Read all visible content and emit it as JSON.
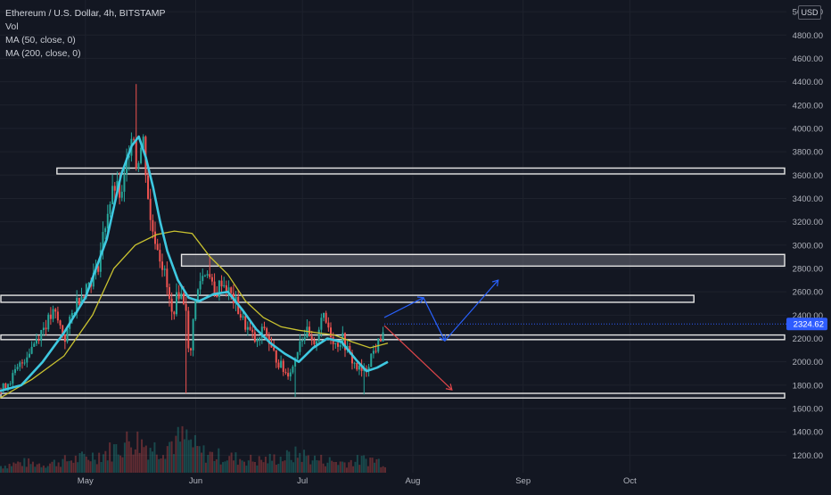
{
  "legend": {
    "title": "Ethereum / U.S. Dollar, 4h, BITSTAMP",
    "indicators": [
      "Vol",
      "MA (50, close, 0)",
      "MA (200, close, 0)"
    ]
  },
  "currency_label": "USD",
  "colors": {
    "background": "#131722",
    "grid": "#1e222d",
    "candle_up": "#26a69a",
    "candle_down": "#ef5350",
    "ma50": "#3ec8e0",
    "ma200": "#c9c230",
    "zone_border": "#e6e6e6",
    "zone_fill": "#6b6e78",
    "bull_arrow": "#2962ff",
    "bear_arrow": "#e0464a",
    "last_price_bg": "#2e5cff"
  },
  "chart_data": {
    "type": "candlestick",
    "symbol": "Ethereum / U.S. Dollar",
    "interval": "4h",
    "exchange": "BITSTAMP",
    "ylim": [
      1050,
      5100
    ],
    "y_ticks": [
      "1200.00",
      "1400.00",
      "1600.00",
      "1800.00",
      "2000.00",
      "2200.00",
      "2400.00",
      "2600.00",
      "2800.00",
      "3000.00",
      "3200.00",
      "3400.00",
      "3600.00",
      "3800.00",
      "4000.00",
      "4200.00",
      "4400.00",
      "4600.00",
      "4800.00",
      "5000.00"
    ],
    "y_tick_values": [
      1200,
      1400,
      1600,
      1800,
      2000,
      2200,
      2400,
      2600,
      2800,
      3000,
      3200,
      3400,
      3600,
      3800,
      4000,
      4200,
      4400,
      4600,
      4800,
      5000
    ],
    "x_tick_labels": [
      "May",
      "Jun",
      "Jul",
      "Aug",
      "Sep",
      "Oct"
    ],
    "x_tick_days": [
      0,
      31,
      61,
      92,
      123,
      153
    ],
    "xlim_days": [
      -24,
      197
    ],
    "last_price": "2324.62",
    "last_price_value": 2324.62,
    "close_path": [
      [
        -24,
        1750
      ],
      [
        -20,
        1900
      ],
      [
        -16,
        2100
      ],
      [
        -12,
        2300
      ],
      [
        -9,
        2420
      ],
      [
        -6,
        2200
      ],
      [
        -3,
        2500
      ],
      [
        0,
        2650
      ],
      [
        3,
        2780
      ],
      [
        6,
        3300
      ],
      [
        8,
        3500
      ],
      [
        10,
        3400
      ],
      [
        12,
        3850
      ],
      [
        13,
        4050
      ],
      [
        14,
        3700
      ],
      [
        16,
        3900
      ],
      [
        18,
        3200
      ],
      [
        20,
        3000
      ],
      [
        22,
        2750
      ],
      [
        24,
        2400
      ],
      [
        26,
        2600
      ],
      [
        28,
        2500
      ],
      [
        29,
        1900
      ],
      [
        30,
        2400
      ],
      [
        32,
        2700
      ],
      [
        34,
        2800
      ],
      [
        36,
        2550
      ],
      [
        38,
        2700
      ],
      [
        40,
        2600
      ],
      [
        42,
        2500
      ],
      [
        44,
        2350
      ],
      [
        46,
        2250
      ],
      [
        48,
        2150
      ],
      [
        50,
        2300
      ],
      [
        52,
        2100
      ],
      [
        54,
        2000
      ],
      [
        56,
        1900
      ],
      [
        58,
        1950
      ],
      [
        60,
        2200
      ],
      [
        62,
        2250
      ],
      [
        64,
        2100
      ],
      [
        66,
        2400
      ],
      [
        68,
        2300
      ],
      [
        70,
        2150
      ],
      [
        72,
        2200
      ],
      [
        74,
        2050
      ],
      [
        76,
        1950
      ],
      [
        78,
        1900
      ],
      [
        80,
        2050
      ],
      [
        82,
        2150
      ],
      [
        84,
        2324.62
      ]
    ],
    "wick_lows": [
      [
        28,
        1730
      ],
      [
        59,
        1700
      ],
      [
        78,
        1720
      ]
    ],
    "wick_highs": [
      [
        14,
        4380
      ],
      [
        35,
        2900
      ]
    ],
    "ma50": [
      [
        -24,
        1750
      ],
      [
        -18,
        1800
      ],
      [
        -12,
        2000
      ],
      [
        -6,
        2250
      ],
      [
        0,
        2550
      ],
      [
        6,
        3050
      ],
      [
        10,
        3600
      ],
      [
        13,
        3850
      ],
      [
        15,
        3930
      ],
      [
        17,
        3750
      ],
      [
        19,
        3500
      ],
      [
        21,
        3200
      ],
      [
        23,
        2950
      ],
      [
        26,
        2700
      ],
      [
        29,
        2550
      ],
      [
        32,
        2520
      ],
      [
        36,
        2580
      ],
      [
        40,
        2600
      ],
      [
        44,
        2450
      ],
      [
        48,
        2280
      ],
      [
        52,
        2160
      ],
      [
        56,
        2070
      ],
      [
        60,
        2000
      ],
      [
        64,
        2120
      ],
      [
        68,
        2200
      ],
      [
        72,
        2170
      ],
      [
        76,
        2020
      ],
      [
        79,
        1920
      ],
      [
        82,
        1950
      ],
      [
        85,
        2000
      ]
    ],
    "ma200": [
      [
        -24,
        1690
      ],
      [
        -15,
        1850
      ],
      [
        -6,
        2050
      ],
      [
        2,
        2400
      ],
      [
        8,
        2800
      ],
      [
        14,
        3000
      ],
      [
        20,
        3090
      ],
      [
        25,
        3120
      ],
      [
        30,
        3100
      ],
      [
        35,
        2900
      ],
      [
        40,
        2750
      ],
      [
        45,
        2520
      ],
      [
        50,
        2380
      ],
      [
        55,
        2300
      ],
      [
        60,
        2270
      ],
      [
        65,
        2250
      ],
      [
        70,
        2230
      ],
      [
        75,
        2170
      ],
      [
        80,
        2120
      ],
      [
        85,
        2160
      ]
    ],
    "zones": [
      {
        "from_day": -8,
        "to_day": 197,
        "low": 3610,
        "high": 3660,
        "fill": "dark"
      },
      {
        "from_day": 27,
        "to_day": 197,
        "low": 2820,
        "high": 2920,
        "fill": "grey"
      },
      {
        "from_day": -24,
        "to_day": 171,
        "low": 2510,
        "high": 2570,
        "fill": "dark"
      },
      {
        "from_day": -24,
        "to_day": 197,
        "low": 2190,
        "high": 2230,
        "fill": "dark"
      },
      {
        "from_day": -24,
        "to_day": 197,
        "low": 1690,
        "high": 1730,
        "fill": "dark"
      }
    ],
    "projection_bullish": [
      [
        84,
        2380
      ],
      [
        95,
        2550
      ],
      [
        101,
        2180
      ],
      [
        116,
        2700
      ]
    ],
    "projection_bearish": [
      [
        84,
        2310
      ],
      [
        103,
        1760
      ]
    ],
    "volume": [
      [
        -24,
        0.2
      ],
      [
        -18,
        0.3
      ],
      [
        -12,
        0.25
      ],
      [
        -6,
        0.35
      ],
      [
        0,
        0.45
      ],
      [
        6,
        0.6
      ],
      [
        10,
        0.8
      ],
      [
        13,
        1.0
      ],
      [
        16,
        0.85
      ],
      [
        20,
        0.7
      ],
      [
        24,
        0.9
      ],
      [
        28,
        1.0
      ],
      [
        32,
        0.6
      ],
      [
        36,
        0.5
      ],
      [
        40,
        0.45
      ],
      [
        44,
        0.4
      ],
      [
        48,
        0.35
      ],
      [
        52,
        0.4
      ],
      [
        56,
        0.45
      ],
      [
        60,
        0.55
      ],
      [
        64,
        0.4
      ],
      [
        68,
        0.35
      ],
      [
        72,
        0.3
      ],
      [
        76,
        0.35
      ],
      [
        80,
        0.4
      ],
      [
        84,
        0.3
      ]
    ]
  }
}
